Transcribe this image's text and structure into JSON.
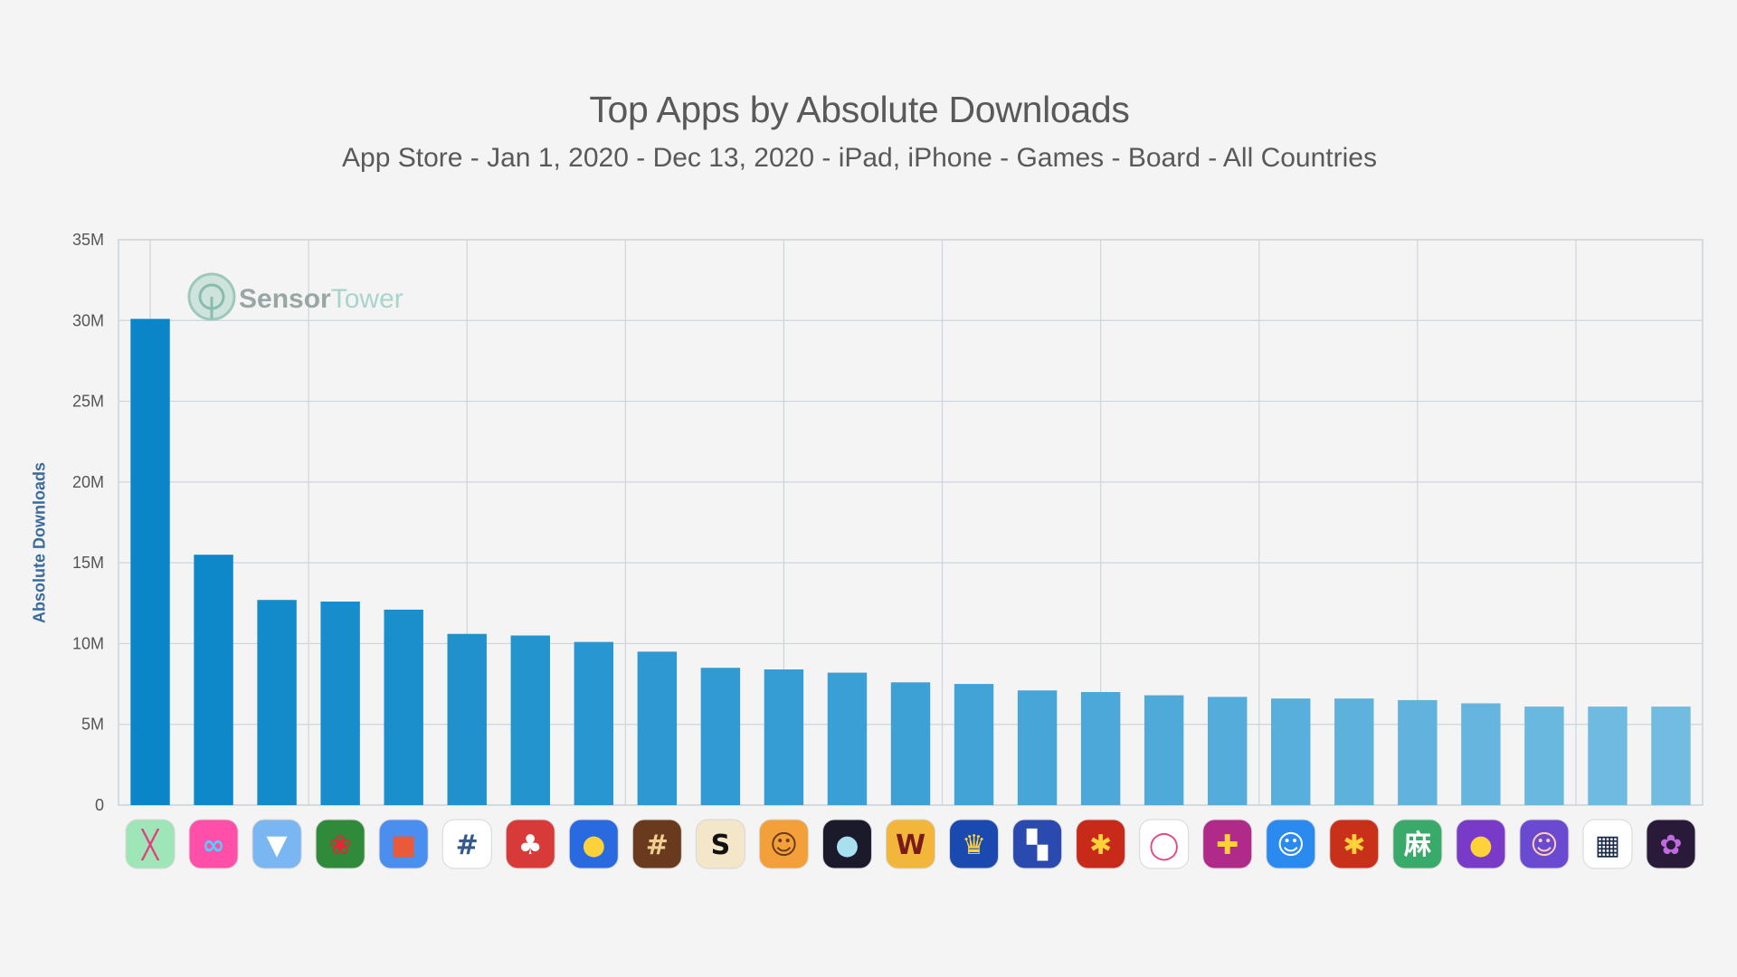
{
  "watermark": {
    "brand_first": "Sensor",
    "brand_second": "Tower"
  },
  "chart_data": {
    "type": "bar",
    "title": "Top Apps by Absolute Downloads",
    "subtitle": "App Store - Jan 1, 2020 - Dec 13, 2020 - iPad, iPhone - Games - Board - All Countries",
    "xlabel": "",
    "ylabel": "Absolute Downloads",
    "ylim": [
      0,
      35000000
    ],
    "y_ticks": [
      {
        "value": 0,
        "label": "0"
      },
      {
        "value": 5000000,
        "label": "5M"
      },
      {
        "value": 10000000,
        "label": "10M"
      },
      {
        "value": 15000000,
        "label": "15M"
      },
      {
        "value": 20000000,
        "label": "20M"
      },
      {
        "value": 25000000,
        "label": "25M"
      },
      {
        "value": 30000000,
        "label": "30M"
      },
      {
        "value": 35000000,
        "label": "35M"
      }
    ],
    "grid": true,
    "bar_color_start": "#0a86c8",
    "bar_color_end": "#72bce2",
    "values": [
      30100000,
      15500000,
      12700000,
      12600000,
      12100000,
      10600000,
      10500000,
      10100000,
      9500000,
      8500000,
      8400000,
      8200000,
      7600000,
      7500000,
      7100000,
      7000000,
      6800000,
      6700000,
      6600000,
      6600000,
      6500000,
      6300000,
      6100000,
      6100000,
      6100000
    ],
    "categories": [
      {
        "icon": "stick-puzzle-icon",
        "bg": "#9ee6b8",
        "fg": "#e0407a",
        "glyph": "╳"
      },
      {
        "icon": "rope-knot-icon",
        "bg": "#ff4fa8",
        "fg": "#4fd0ff",
        "glyph": "∞"
      },
      {
        "icon": "water-sort-icon",
        "bg": "#7ab6f2",
        "fg": "#ffffff",
        "glyph": "▼"
      },
      {
        "icon": "rose-coloring-icon",
        "bg": "#2f8a3a",
        "fg": "#e8243a",
        "glyph": "❀"
      },
      {
        "icon": "block-cube-icon",
        "bg": "#4a8ef0",
        "fg": "#e85a3a",
        "glyph": "■"
      },
      {
        "icon": "sudoku-grid-icon",
        "bg": "#ffffff",
        "fg": "#335a8a",
        "glyph": "#"
      },
      {
        "icon": "santa-solitaire-icon",
        "bg": "#d83a3a",
        "fg": "#ffffff",
        "glyph": "♣"
      },
      {
        "icon": "bird-puzzle-icon",
        "bg": "#2a6ae0",
        "fg": "#ffd23a",
        "glyph": "●"
      },
      {
        "icon": "number-tiles-icon",
        "bg": "#6a3a1e",
        "fg": "#f0d090",
        "glyph": "#"
      },
      {
        "icon": "scrabble-s-icon",
        "bg": "#f4e6c8",
        "fg": "#111111",
        "glyph": "S"
      },
      {
        "icon": "cartoon-man-icon",
        "bg": "#f4a03a",
        "fg": "#6a3a1a",
        "glyph": "☺"
      },
      {
        "icon": "dot-match-icon",
        "bg": "#1a1a2a",
        "fg": "#a8e0f0",
        "glyph": "●"
      },
      {
        "icon": "words-w-icon",
        "bg": "#f2b63a",
        "fg": "#7a1a1a",
        "glyph": "W"
      },
      {
        "icon": "ludo-king-icon",
        "bg": "#1a4ab0",
        "fg": "#ffd23a",
        "glyph": "♛"
      },
      {
        "icon": "block-grid-icon",
        "bg": "#2a4ab0",
        "fg": "#ffffff",
        "glyph": "▚"
      },
      {
        "icon": "jigsaw-piece-icon",
        "bg": "#c82a1a",
        "fg": "#ffd23a",
        "glyph": "✱"
      },
      {
        "icon": "rainbow-ring-icon",
        "bg": "#ffffff",
        "fg": "#e04a8a",
        "glyph": "◯"
      },
      {
        "icon": "parchis-board-icon",
        "bg": "#b02a8a",
        "fg": "#ffd23a",
        "glyph": "✚"
      },
      {
        "icon": "smile-chat-icon",
        "bg": "#2a8af0",
        "fg": "#ffffff",
        "glyph": "☺"
      },
      {
        "icon": "jigsaw-gold-icon",
        "bg": "#c8301a",
        "fg": "#ffd23a",
        "glyph": "✱"
      },
      {
        "icon": "mahjong-icon",
        "bg": "#3aaa6a",
        "fg": "#ffffff",
        "glyph": "麻"
      },
      {
        "icon": "ludo-club-icon",
        "bg": "#7a3ac8",
        "fg": "#ffd23a",
        "glyph": "●"
      },
      {
        "icon": "chef-girl-icon",
        "bg": "#6a4ad0",
        "fg": "#ffd0b0",
        "glyph": "☺"
      },
      {
        "icon": "nonogram-icon",
        "bg": "#ffffff",
        "fg": "#1a2a4a",
        "glyph": "▦"
      },
      {
        "icon": "lotus-coloring-icon",
        "bg": "#2a1a3a",
        "fg": "#c06ae0",
        "glyph": "✿"
      }
    ]
  }
}
